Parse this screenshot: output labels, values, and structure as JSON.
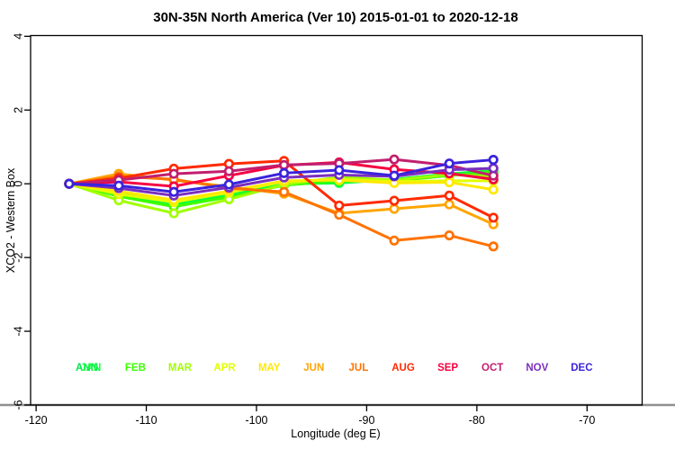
{
  "chart_data": {
    "type": "line",
    "title": "30N-35N North America (Ver 10)   2015-01-01 to 2020-12-18",
    "xlabel": "Longitude (deg E)",
    "ylabel": "XCO2 - Western Box",
    "xlim": [
      -120.5,
      -65.0
    ],
    "ylim": [
      -6.0,
      4.02
    ],
    "x_ticks": [
      -120,
      -110,
      -100,
      -90,
      -80,
      -70
    ],
    "y_ticks": [
      -6,
      -4,
      -2,
      0,
      2,
      4
    ],
    "grid": false,
    "x": [
      -117.0,
      -112.5,
      -107.5,
      -102.5,
      -97.5,
      -92.5,
      -87.5,
      -82.5,
      -78.5
    ],
    "series": [
      {
        "name": "ANN",
        "color": "#00E64D",
        "values": [
          0.0,
          -0.22,
          -0.52,
          -0.28,
          0.03,
          0.05,
          0.1,
          0.24,
          0.3
        ]
      },
      {
        "name": "JAN",
        "color": "#0FFF3C",
        "values": [
          0.0,
          -0.28,
          -0.58,
          -0.32,
          0.0,
          0.02,
          0.12,
          0.27,
          0.36
        ]
      },
      {
        "name": "FEB",
        "color": "#3CFF00",
        "values": [
          0.0,
          -0.34,
          -0.62,
          -0.36,
          -0.04,
          0.08,
          0.08,
          0.22,
          0.32
        ]
      },
      {
        "name": "MAR",
        "color": "#A0FF00",
        "values": [
          0.0,
          -0.45,
          -0.8,
          -0.42,
          -0.02,
          0.18,
          0.1,
          0.25,
          0.2
        ]
      },
      {
        "name": "APR",
        "color": "#E1FF00",
        "values": [
          0.0,
          -0.28,
          -0.5,
          -0.24,
          0.06,
          0.12,
          0.06,
          0.08,
          0.08
        ]
      },
      {
        "name": "MAY",
        "color": "#FFE900",
        "values": [
          0.0,
          -0.2,
          -0.44,
          -0.2,
          0.08,
          0.1,
          0.02,
          0.04,
          -0.16
        ]
      },
      {
        "name": "JUN",
        "color": "#FFA500",
        "values": [
          0.0,
          0.27,
          0.1,
          -0.08,
          -0.27,
          -0.8,
          -0.68,
          -0.56,
          -1.1
        ]
      },
      {
        "name": "JUL",
        "color": "#FF7300",
        "values": [
          0.0,
          0.2,
          0.12,
          -0.12,
          -0.22,
          -0.84,
          -1.54,
          -1.4,
          -1.7
        ]
      },
      {
        "name": "AUG",
        "color": "#FF2A00",
        "values": [
          0.0,
          0.15,
          0.41,
          0.54,
          0.62,
          -0.59,
          -0.46,
          -0.32,
          -0.92
        ]
      },
      {
        "name": "SEP",
        "color": "#F50041",
        "values": [
          0.0,
          0.05,
          -0.07,
          0.22,
          0.5,
          0.58,
          0.39,
          0.28,
          0.12
        ]
      },
      {
        "name": "OCT",
        "color": "#C21E6E",
        "values": [
          0.0,
          0.1,
          0.27,
          0.34,
          0.51,
          0.55,
          0.66,
          0.5,
          0.22
        ]
      },
      {
        "name": "NOV",
        "color": "#7B2FBE",
        "values": [
          0.0,
          -0.12,
          -0.32,
          -0.1,
          0.17,
          0.24,
          0.2,
          0.38,
          0.42
        ]
      },
      {
        "name": "DEC",
        "color": "#3A23DC",
        "values": [
          0.0,
          -0.05,
          -0.22,
          -0.02,
          0.29,
          0.37,
          0.22,
          0.55,
          0.65
        ]
      }
    ],
    "legend": {
      "position": "bottom-inside",
      "ann_overlaps_jan": true,
      "items": [
        {
          "label": "ANN",
          "color": "#00E64D"
        },
        {
          "label": "JAN",
          "color": "#0FFF3C"
        },
        {
          "label": "FEB",
          "color": "#3CFF00"
        },
        {
          "label": "MAR",
          "color": "#A0FF00"
        },
        {
          "label": "APR",
          "color": "#E1FF00"
        },
        {
          "label": "MAY",
          "color": "#FFE900"
        },
        {
          "label": "JUN",
          "color": "#FFA500"
        },
        {
          "label": "JUL",
          "color": "#FF7300"
        },
        {
          "label": "AUG",
          "color": "#FF2A00"
        },
        {
          "label": "SEP",
          "color": "#F50041"
        },
        {
          "label": "OCT",
          "color": "#C21E6E"
        },
        {
          "label": "NOV",
          "color": "#7B2FBE"
        },
        {
          "label": "DEC",
          "color": "#3A23DC"
        }
      ]
    }
  }
}
